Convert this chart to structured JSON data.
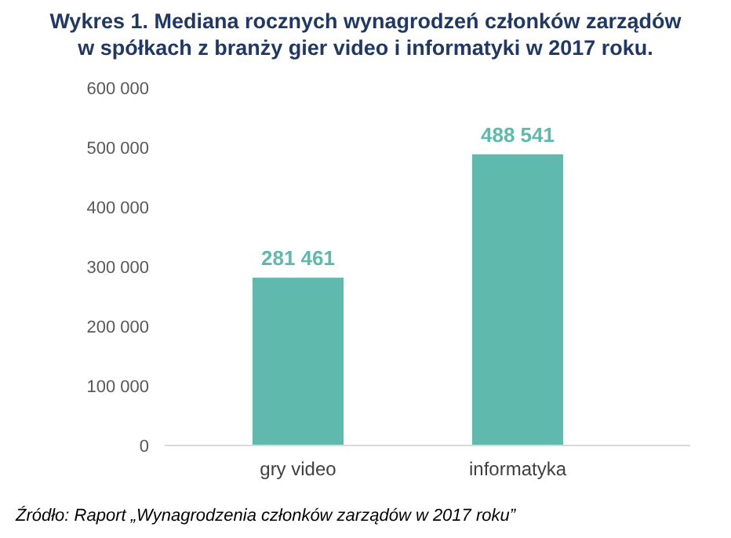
{
  "chart_data": {
    "type": "bar",
    "title": "Wykres 1. Mediana rocznych wynagrodzeń członków zarządów w spółkach z branży gier video i informatyki w 2017 roku.",
    "categories": [
      "gry video",
      "informatyka"
    ],
    "values": [
      281461,
      488541
    ],
    "value_labels": [
      "281 461",
      "488 541"
    ],
    "color": "#5fb9ad",
    "ylim": [
      0,
      600000
    ],
    "yticks": [
      {
        "value": 0,
        "label": "0"
      },
      {
        "value": 100000,
        "label": "100 000"
      },
      {
        "value": 200000,
        "label": "200 000"
      },
      {
        "value": 300000,
        "label": "300 000"
      },
      {
        "value": 400000,
        "label": "400 000"
      },
      {
        "value": 500000,
        "label": "500 000"
      },
      {
        "value": 600000,
        "label": "600 000"
      }
    ],
    "grid": false,
    "annotations": [
      "Źródło: Raport „Wynagrodzenia członków zarządów w 2017 roku”"
    ]
  }
}
